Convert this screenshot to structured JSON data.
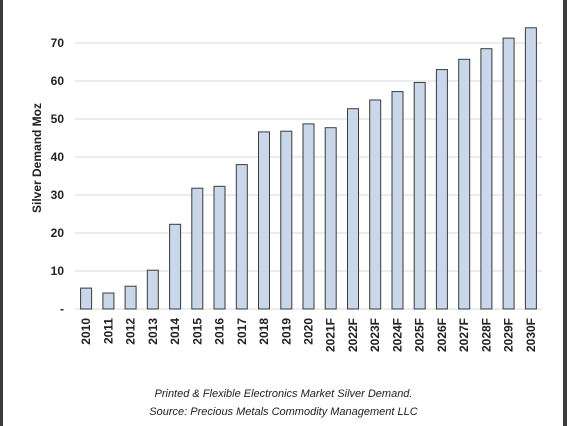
{
  "chart_data": {
    "type": "bar",
    "ylabel": "Silver Demand Moz",
    "ytick_labels": [
      "-",
      "10",
      "20",
      "30",
      "40",
      "50",
      "60",
      "70"
    ],
    "ylim": [
      0,
      75
    ],
    "grid": true,
    "categories": [
      "2010",
      "2011",
      "2012",
      "2013",
      "2014",
      "2015",
      "2016",
      "2017",
      "2018",
      "2019",
      "2020",
      "2021F",
      "2022F",
      "2023F",
      "2024F",
      "2025F",
      "2026F",
      "2027F",
      "2028F",
      "2029F",
      "2030F"
    ],
    "values": [
      5.5,
      4.2,
      6.0,
      10.2,
      22.3,
      31.8,
      32.3,
      38.0,
      46.6,
      46.8,
      48.7,
      47.7,
      52.7,
      55.0,
      57.2,
      59.6,
      63.0,
      65.7,
      68.5,
      71.3,
      74.0
    ],
    "colors": {
      "bar_fill": "#c9d7ea",
      "bar_stroke": "#3a3a3a",
      "grid": "#d9d9d9"
    }
  },
  "caption": {
    "line1": "Printed & Flexible Electronics Market Silver Demand.",
    "line2": "Source: Precious Metals Commodity Management LLC"
  }
}
